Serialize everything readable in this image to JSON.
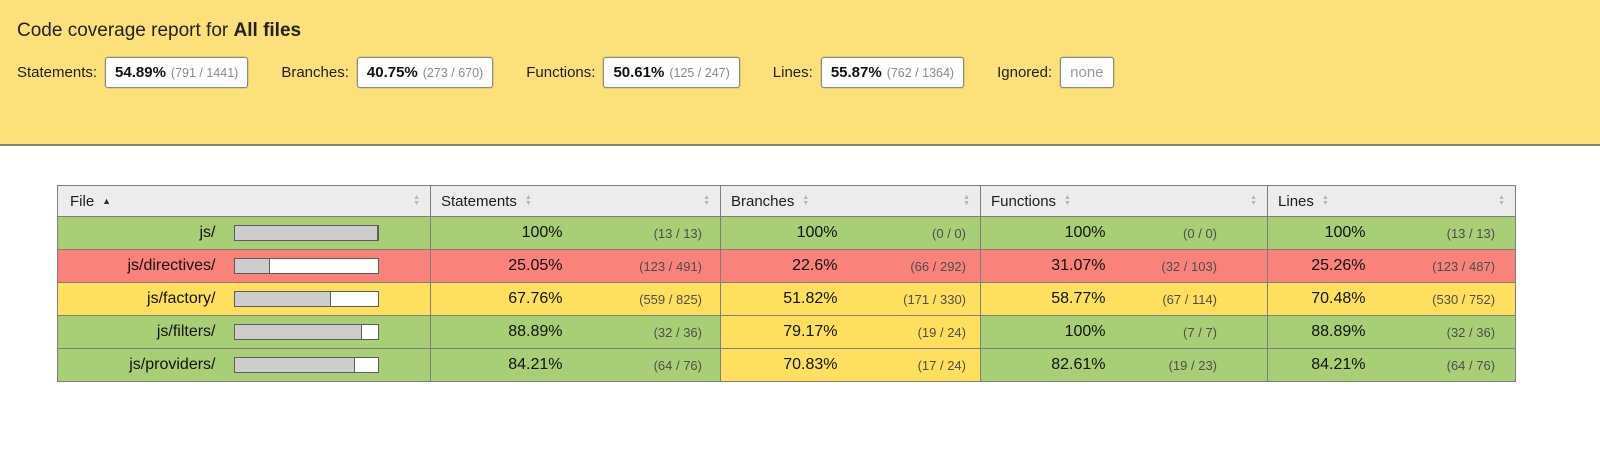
{
  "banner": {
    "title_prefix": "Code coverage report for ",
    "title_entity": "All files",
    "metrics": [
      {
        "label": "Statements:",
        "pct": "54.89%",
        "frac": "(791 / 1441)"
      },
      {
        "label": "Branches:",
        "pct": "40.75%",
        "frac": "(273 / 670)"
      },
      {
        "label": "Functions:",
        "pct": "50.61%",
        "frac": "(125 / 247)"
      },
      {
        "label": "Lines:",
        "pct": "55.87%",
        "frac": "(762 / 1364)"
      }
    ],
    "ignored_label": "Ignored:",
    "ignored_value": "none"
  },
  "table": {
    "headers": {
      "file": "File",
      "statements": "Statements",
      "branches": "Branches",
      "functions": "Functions",
      "lines": "Lines"
    },
    "sort": {
      "column": "File",
      "direction": "ascending"
    },
    "rows": [
      {
        "file": "js/",
        "bar_pct": 100,
        "statements_pct": "100%",
        "statements_frac": "(13 / 13)",
        "branches_pct": "100%",
        "branches_frac": "(0 / 0)",
        "functions_pct": "100%",
        "functions_frac": "(0 / 0)",
        "lines_pct": "100%",
        "lines_frac": "(13 / 13)"
      },
      {
        "file": "js/directives/",
        "bar_pct": 25.05,
        "statements_pct": "25.05%",
        "statements_frac": "(123 / 491)",
        "branches_pct": "22.6%",
        "branches_frac": "(66 / 292)",
        "functions_pct": "31.07%",
        "functions_frac": "(32 / 103)",
        "lines_pct": "25.26%",
        "lines_frac": "(123 / 487)"
      },
      {
        "file": "js/factory/",
        "bar_pct": 67.76,
        "statements_pct": "67.76%",
        "statements_frac": "(559 / 825)",
        "branches_pct": "51.82%",
        "branches_frac": "(171 / 330)",
        "functions_pct": "58.77%",
        "functions_frac": "(67 / 114)",
        "lines_pct": "70.48%",
        "lines_frac": "(530 / 752)"
      },
      {
        "file": "js/filters/",
        "bar_pct": 88.89,
        "statements_pct": "88.89%",
        "statements_frac": "(32 / 36)",
        "branches_pct": "79.17%",
        "branches_frac": "(19 / 24)",
        "functions_pct": "100%",
        "functions_frac": "(7 / 7)",
        "lines_pct": "88.89%",
        "lines_frac": "(32 / 36)"
      },
      {
        "file": "js/providers/",
        "bar_pct": 84.21,
        "statements_pct": "84.21%",
        "statements_frac": "(64 / 76)",
        "branches_pct": "70.83%",
        "branches_frac": "(17 / 24)",
        "functions_pct": "82.61%",
        "functions_frac": "(19 / 23)",
        "lines_pct": "84.21%",
        "lines_frac": "(64 / 76)"
      }
    ]
  },
  "colors": {
    "banner_bg": "#fce17b",
    "high_bg": "#a9cf76",
    "medium_bg": "#ffe05e",
    "low_bg": "#f9827b",
    "header_bg": "#ececec",
    "table_border": "#7e7e7e",
    "bar_fill": "#cdcdcd"
  }
}
